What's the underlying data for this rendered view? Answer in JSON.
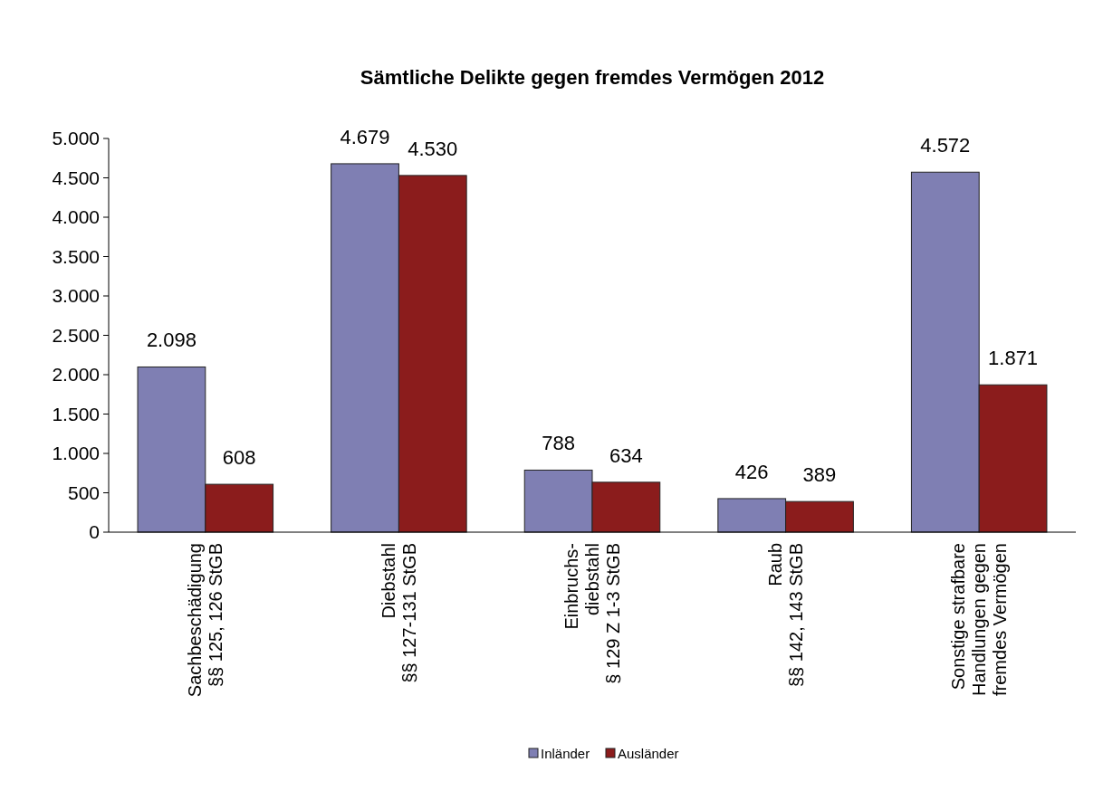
{
  "chart_data": {
    "type": "bar",
    "title": "Sämtliche Delikte gegen fremdes Vermögen 2012",
    "categories": [
      "Sachbeschädigung\n§§ 125, 126 StGB",
      "Diebstahl\n§§ 127-131 StGB",
      "Einbruchs-\ndiebstahl\n§ 129 Z 1-3 StGB",
      "Raub\n§§ 142, 143 StGB",
      "Sonstige strafbare\nHandlungen gegen\nfremdes Vermögen"
    ],
    "series": [
      {
        "name": "Inländer",
        "color": "#7f7fb3",
        "values": [
          2098,
          4679,
          788,
          426,
          4572
        ],
        "value_labels": [
          "2.098",
          "4.679",
          "788",
          "426",
          "4.572"
        ]
      },
      {
        "name": "Ausländer",
        "color": "#8b1c1c",
        "values": [
          608,
          4530,
          634,
          389,
          1871
        ],
        "value_labels": [
          "608",
          "4.530",
          "634",
          "389",
          "1.871"
        ]
      }
    ],
    "ylim": [
      0,
      5000
    ],
    "yticks": [
      {
        "value": 0,
        "label": "0"
      },
      {
        "value": 500,
        "label": "500"
      },
      {
        "value": 1000,
        "label": "1.000"
      },
      {
        "value": 1500,
        "label": "1.500"
      },
      {
        "value": 2000,
        "label": "2.000"
      },
      {
        "value": 2500,
        "label": "2.500"
      },
      {
        "value": 3000,
        "label": "3.000"
      },
      {
        "value": 3500,
        "label": "3.500"
      },
      {
        "value": 4000,
        "label": "4.000"
      },
      {
        "value": 4500,
        "label": "4.500"
      },
      {
        "value": 5000,
        "label": "5.000"
      }
    ],
    "legend": "bottom"
  }
}
